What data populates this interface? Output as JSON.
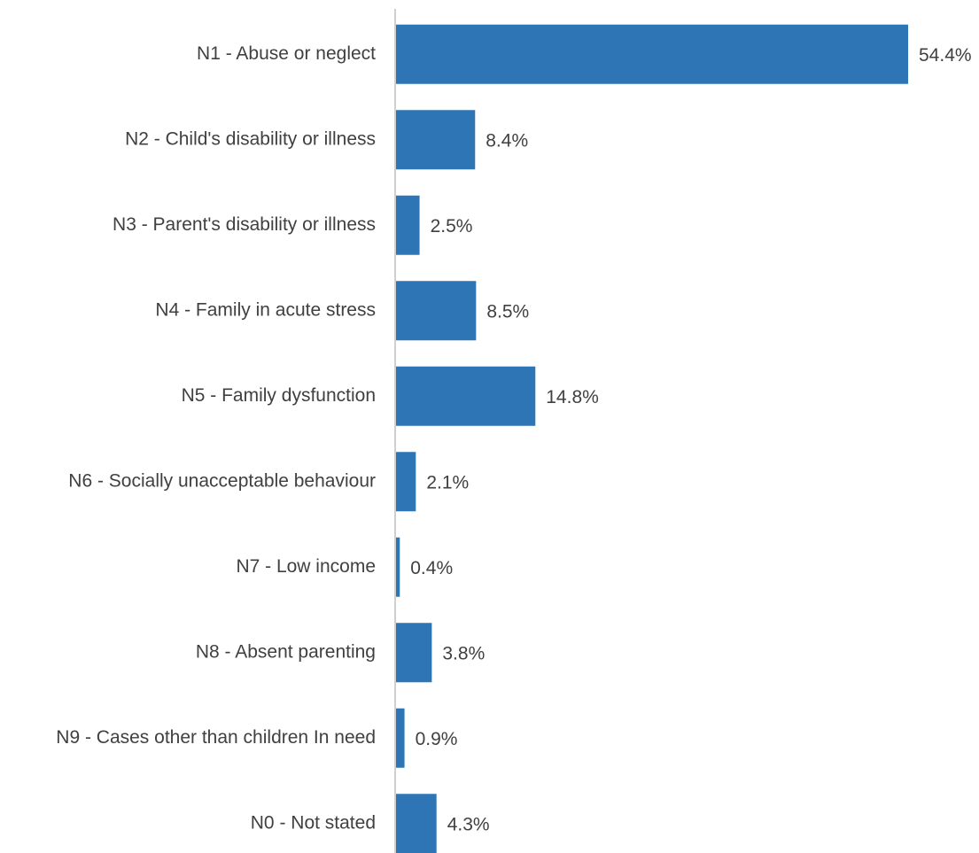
{
  "chart_data": {
    "type": "bar",
    "orientation": "horizontal",
    "title": "",
    "xlabel": "",
    "ylabel": "",
    "categories": [
      "N1 - Abuse or neglect",
      "N2 - Child's disability or illness",
      "N3 - Parent's disability or illness",
      "N4 - Family in acute stress",
      "N5 - Family dysfunction",
      "N6 - Socially unacceptable behaviour",
      "N7 - Low income",
      "N8 - Absent parenting",
      "N9 - Cases other than children In need",
      "N0 - Not stated"
    ],
    "values": [
      54.4,
      8.4,
      2.5,
      8.5,
      14.8,
      2.1,
      0.4,
      3.8,
      0.9,
      4.3
    ],
    "data_labels": [
      "54.4%",
      "8.4%",
      "2.5%",
      "8.5%",
      "14.8%",
      "2.1%",
      "0.4%",
      "3.8%",
      "0.9%",
      "4.3%"
    ],
    "xlim": [
      0,
      54.4
    ],
    "grid": false,
    "legend": "none",
    "bar_color": "#2e75b6",
    "text_color": "#404040",
    "axis_color": "#bfbfbf"
  }
}
